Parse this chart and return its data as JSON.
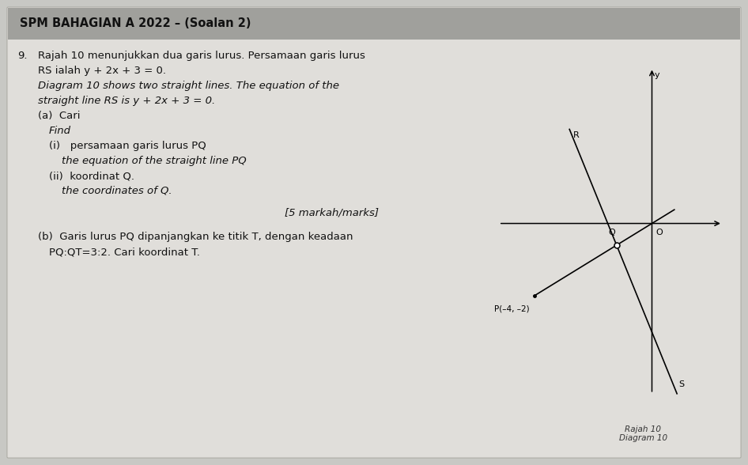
{
  "title": "SPM BAHAGIAN A 2022 – (Soalan 2)",
  "background_color": "#c8c8c4",
  "paper_color": "#e0deda",
  "title_bar_color": "#a0a09c",
  "font_size_title": 10.5,
  "font_size_body": 9.5,
  "font_size_diagram": 8,
  "text_color": "#111111",
  "diagram": {
    "xlim": [
      -5.5,
      2.5
    ],
    "ylim": [
      -5.0,
      4.5
    ],
    "x_P": -4,
    "y_P": -2,
    "x_Q": -1.2,
    "y_Q": -0.6,
    "RS_x1": -2.8,
    "RS_y1": 2.6,
    "RS_x2": 0.85,
    "RS_y2": -4.7,
    "PQ_extend_t": 1.7
  }
}
